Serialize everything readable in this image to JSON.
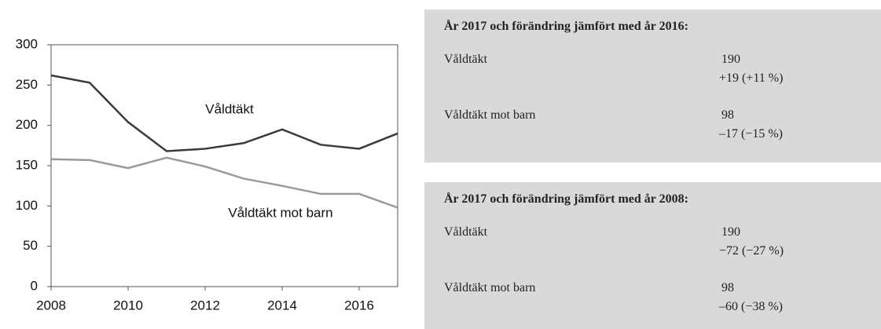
{
  "chart_data": {
    "type": "line",
    "x": [
      2008,
      2009,
      2010,
      2011,
      2012,
      2013,
      2014,
      2015,
      2016,
      2017
    ],
    "series": [
      {
        "name": "Våldtäkt",
        "color": "#3a3a3a",
        "values": [
          262,
          253,
          204,
          168,
          171,
          178,
          195,
          176,
          171,
          190
        ]
      },
      {
        "name": "Våldtäkt mot barn",
        "color": "#9a9a9a",
        "values": [
          158,
          157,
          147,
          160,
          149,
          134,
          125,
          115,
          115,
          98
        ]
      }
    ],
    "xlim": [
      2008,
      2017
    ],
    "xticks": [
      2008,
      2010,
      2012,
      2014,
      2016
    ],
    "ylim": [
      0,
      300
    ],
    "yticks": [
      0,
      50,
      100,
      150,
      200,
      250,
      300
    ],
    "grid": false
  },
  "panels": [
    {
      "title": "År 2017 och förändring jämfört med år 2016:",
      "rows": [
        {
          "label": "Våldtäkt",
          "value": "190",
          "change": "+19 (+11 %)"
        },
        {
          "label": "Våldtäkt mot barn",
          "value": "98",
          "change": "–17 (−15 %)"
        }
      ]
    },
    {
      "title": "År 2017 och förändring jämfört med år 2008:",
      "rows": [
        {
          "label": "Våldtäkt",
          "value": "190",
          "change": "−72 (−27 %)"
        },
        {
          "label": "Våldtäkt mot barn",
          "value": "98",
          "change": "–60 (−38 %)"
        }
      ]
    }
  ]
}
